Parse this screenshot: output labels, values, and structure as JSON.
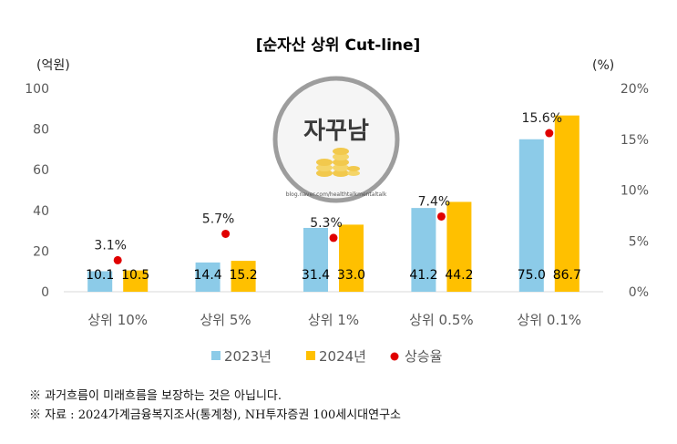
{
  "chart_data": {
    "type": "bar",
    "title": "[순자산 상위 Cut-line]",
    "ylabel_left": "(억원)",
    "ylabel_right": "(%)",
    "categories": [
      "상위 10%",
      "상위 5%",
      "상위 1%",
      "상위 0.5%",
      "상위 0.1%"
    ],
    "series": [
      {
        "name": "2023년",
        "color": "#8ccbe8",
        "values": [
          10.1,
          14.4,
          31.4,
          41.2,
          75.0
        ],
        "labels": [
          "10.1",
          "14.4",
          "31.4",
          "41.2",
          "75.0"
        ]
      },
      {
        "name": "2024년",
        "color": "#ffc000",
        "values": [
          10.5,
          15.2,
          33.0,
          44.2,
          86.7
        ],
        "labels": [
          "10.5",
          "15.2",
          "33.0",
          "44.2",
          "86.7"
        ]
      }
    ],
    "rate_series": {
      "name": "상승율",
      "color": "#e00000",
      "values": [
        3.1,
        5.7,
        5.3,
        7.4,
        15.6
      ],
      "labels": [
        "3.1%",
        "5.7%",
        "5.3%",
        "7.4%",
        "15.6%"
      ]
    },
    "ylim_left": [
      0,
      100
    ],
    "yticks_left": [
      "0",
      "20",
      "40",
      "60",
      "80",
      "100"
    ],
    "ylim_right": [
      0,
      20
    ],
    "yticks_right": [
      "0%",
      "5%",
      "10%",
      "15%",
      "20%"
    ],
    "grid": false,
    "legend_position": "bottom"
  },
  "watermark": {
    "text": "자꾸남",
    "url": "blog.naver.com/healthtalkmentaltalk"
  },
  "notes": [
    "※ 과거흐름이 미래흐름을 보장하는 것은 아닙니다.",
    "※ 자료 : 2024가계금융복지조사(통계청), NH투자증권 100세시대연구소"
  ],
  "colors": {
    "axis": "#d9d9d9",
    "text": "#595959"
  }
}
